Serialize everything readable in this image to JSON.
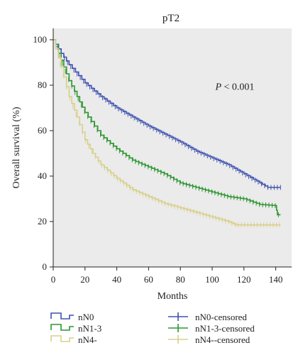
{
  "chart_data": {
    "type": "line",
    "title": "pT2",
    "xlabel": "Months",
    "ylabel": "Overall survival (%)",
    "xlim": [
      0,
      150
    ],
    "ylim": [
      0,
      105
    ],
    "xticks": [
      0,
      20,
      40,
      60,
      80,
      100,
      120,
      140
    ],
    "yticks": [
      0,
      20,
      40,
      60,
      80,
      100
    ],
    "annotation": {
      "italic": "P",
      "rest": " < 0.001",
      "x": 102,
      "y": 78
    },
    "plot_background": "#ebebeb",
    "grid": false,
    "legend_position": "bottom",
    "series": [
      {
        "name": "nN0",
        "censored_name": "nN0-censored",
        "color": "#3f52b0",
        "points": [
          [
            0,
            100
          ],
          [
            5,
            94
          ],
          [
            10,
            89
          ],
          [
            20,
            81
          ],
          [
            30,
            75
          ],
          [
            40,
            70
          ],
          [
            50,
            66
          ],
          [
            60,
            62
          ],
          [
            70,
            58.5
          ],
          [
            80,
            55
          ],
          [
            90,
            51
          ],
          [
            100,
            48
          ],
          [
            110,
            45
          ],
          [
            120,
            41
          ],
          [
            130,
            37
          ],
          [
            135,
            35
          ],
          [
            143,
            35
          ]
        ]
      },
      {
        "name": "nN1-3",
        "censored_name": "nN1-3-censored",
        "color": "#2e9632",
        "points": [
          [
            0,
            100
          ],
          [
            5,
            91
          ],
          [
            10,
            82
          ],
          [
            15,
            75
          ],
          [
            20,
            68
          ],
          [
            30,
            58
          ],
          [
            40,
            52
          ],
          [
            50,
            47
          ],
          [
            60,
            44
          ],
          [
            70,
            41
          ],
          [
            80,
            37
          ],
          [
            90,
            35
          ],
          [
            100,
            33
          ],
          [
            110,
            31
          ],
          [
            120,
            30
          ],
          [
            130,
            27.5
          ],
          [
            140,
            27
          ],
          [
            141,
            23
          ],
          [
            143,
            23
          ]
        ]
      },
      {
        "name": "nN4-",
        "censored_name": "nN4--censored",
        "color": "#d8d08c",
        "points": [
          [
            0,
            100
          ],
          [
            5,
            88
          ],
          [
            10,
            75
          ],
          [
            15,
            66
          ],
          [
            20,
            56
          ],
          [
            25,
            50
          ],
          [
            30,
            45
          ],
          [
            40,
            39
          ],
          [
            50,
            34
          ],
          [
            60,
            31
          ],
          [
            70,
            28
          ],
          [
            80,
            26
          ],
          [
            90,
            24
          ],
          [
            100,
            22
          ],
          [
            110,
            20
          ],
          [
            115,
            18.5
          ],
          [
            143,
            18.5
          ]
        ]
      }
    ]
  }
}
